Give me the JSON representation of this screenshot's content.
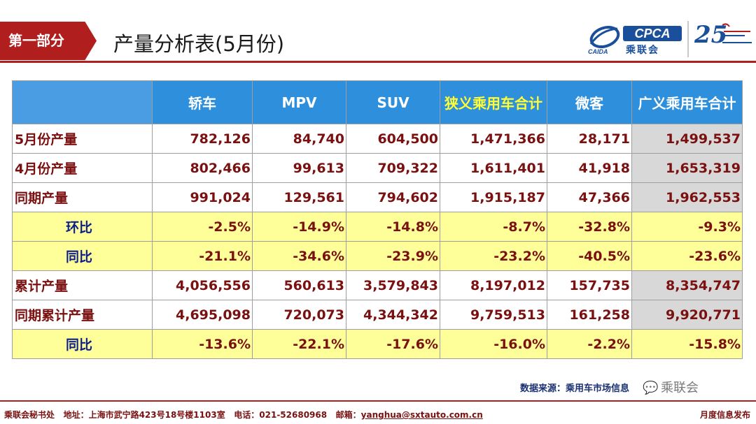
{
  "header": {
    "section_tag": "第一部分",
    "title": "产量分析表(5月份)",
    "cpca_logo_text": "CPCA",
    "cpca_logo_cn": "乘联会",
    "anniversary_number": "25"
  },
  "table": {
    "columns": [
      "",
      "轿车",
      "MPV",
      "SUV",
      "狭义乘用车合计",
      "微客",
      "广义乘用车合计"
    ],
    "rows": [
      {
        "label": "5月份产量",
        "type": "value",
        "values": [
          "782,126",
          "84,740",
          "604,500",
          "1,471,366",
          "28,171",
          "1,499,537"
        ]
      },
      {
        "label": "4月份产量",
        "type": "value",
        "values": [
          "802,466",
          "99,613",
          "709,322",
          "1,611,401",
          "41,918",
          "1,653,319"
        ]
      },
      {
        "label": "同期产量",
        "type": "value",
        "values": [
          "991,024",
          "129,561",
          "794,602",
          "1,915,187",
          "47,366",
          "1,962,553"
        ]
      },
      {
        "label": "环比",
        "type": "rate",
        "values": [
          "-2.5%",
          "-14.9%",
          "-14.8%",
          "-8.7%",
          "-32.8%",
          "-9.3%"
        ]
      },
      {
        "label": "同比",
        "type": "rate",
        "values": [
          "-21.1%",
          "-34.6%",
          "-23.9%",
          "-23.2%",
          "-40.5%",
          "-23.6%"
        ]
      },
      {
        "label": "累计产量",
        "type": "value",
        "values": [
          "4,056,556",
          "560,613",
          "3,579,843",
          "8,197,012",
          "157,735",
          "8,354,747"
        ]
      },
      {
        "label": "同期累计产量",
        "type": "value",
        "values": [
          "4,695,098",
          "720,073",
          "4,344,342",
          "9,759,513",
          "161,258",
          "9,920,771"
        ]
      },
      {
        "label": "同比",
        "type": "rate",
        "values": [
          "-13.6%",
          "-22.1%",
          "-17.6%",
          "-16.0%",
          "-2.2%",
          "-15.8%"
        ]
      }
    ]
  },
  "source": {
    "text": "数据来源：乘用车市场信息",
    "watermark": "乘联会"
  },
  "footer": {
    "left_org": "乘联会秘书处",
    "address": "地址：上海市武宁路423号18号楼1103室",
    "phone": "电话：021-52680968",
    "email_label": "邮箱：",
    "email": "yanghua@sxtauto.com.cn",
    "right": "月度信息发布"
  },
  "colors": {
    "brand_red": "#b01e1e",
    "header_blue": "#2e8fdc",
    "rate_yellow": "#ffff99",
    "value_red": "#7a1010",
    "label_blue": "#0d1f8c",
    "highlight_header_text": "#ffff33"
  }
}
